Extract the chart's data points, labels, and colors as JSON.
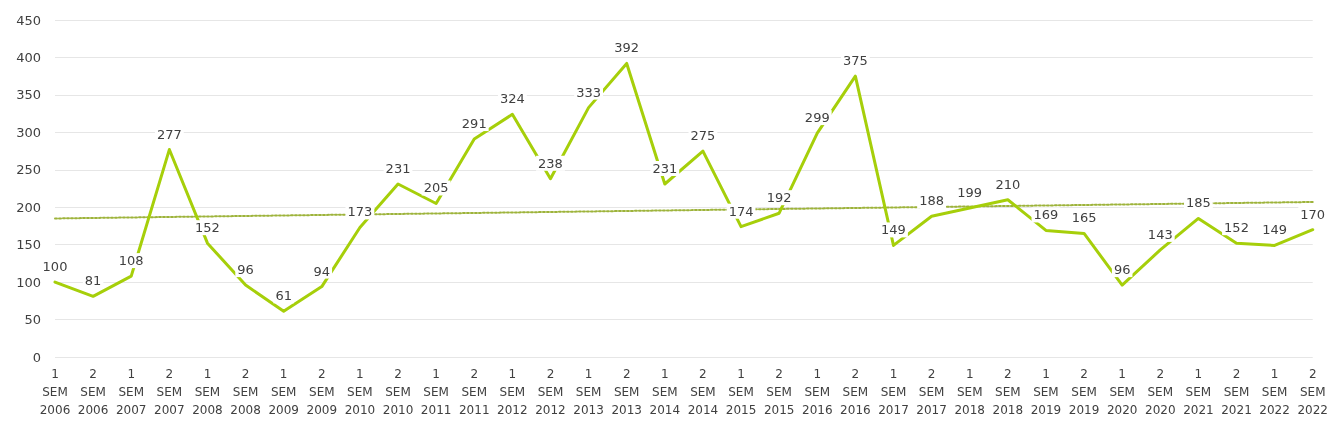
{
  "chart_data": {
    "type": "line",
    "categories": [
      "1 SEM 2006",
      "2 SEM 2006",
      "1 SEM 2007",
      "2 SEM 2007",
      "1 SEM 2008",
      "2 SEM 2008",
      "1 SEM 2009",
      "2 SEM 2009",
      "1 SEM 2010",
      "2 SEM 2010",
      "1 SEM 2011",
      "2 SEM 2011",
      "1 SEM 2012",
      "2 SEM 2012",
      "1 SEM 2013",
      "2 SEM 2013",
      "1 SEM 2014",
      "2 SEM 2014",
      "1 SEM 2015",
      "2 SEM 2015",
      "1 SEM 2016",
      "2 SEM 2016",
      "1 SEM 2017",
      "2 SEM 2017",
      "1 SEM 2018",
      "2 SEM 2018",
      "1 SEM 2019",
      "2 SEM 2019",
      "1 SEM 2020",
      "2 SEM 2020",
      "1 SEM 2021",
      "2 SEM 2021",
      "1 SEM 2022",
      "2 SEM 2022"
    ],
    "series": [
      {
        "color": "#a6cf0a",
        "line_style": "solid",
        "values": [
          100,
          81,
          108,
          277,
          152,
          96,
          61,
          94,
          173,
          231,
          205,
          291,
          324,
          238,
          333,
          392,
          231,
          275,
          174,
          192,
          299,
          375,
          149,
          188,
          199,
          210,
          169,
          165,
          96,
          143,
          185,
          152,
          149,
          170
        ]
      },
      {
        "color": "#9db33a",
        "line_style": "dotted",
        "data_labels": false,
        "x": [
          "1 SEM 2006",
          "2 SEM 2022"
        ],
        "values": [
          185,
          207
        ]
      }
    ],
    "ylim": [
      0,
      450
    ],
    "yticks": [
      0,
      50,
      100,
      150,
      200,
      250,
      300,
      350,
      400,
      450
    ],
    "grid": "y",
    "marker": "none",
    "data_labels": true
  }
}
